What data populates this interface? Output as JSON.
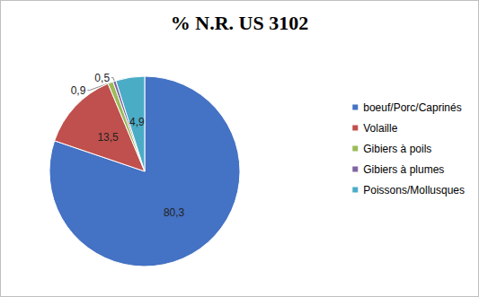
{
  "chart_data": {
    "type": "pie",
    "title": "% N.R. US 3102",
    "categories": [
      "boeuf/Porc/Caprinés",
      "Volaille",
      "Gibiers à poils",
      "Gibiers à plumes",
      "Poissons/Mollusques"
    ],
    "values": [
      80.3,
      13.5,
      0.9,
      0.5,
      4.9
    ],
    "value_labels": [
      "80,3",
      "13,5",
      "0,9",
      "0,5",
      "4,9"
    ],
    "colors": [
      "#4472c4",
      "#c0504d",
      "#9bbb59",
      "#8064a2",
      "#4bacc6"
    ],
    "data_labels": true,
    "legend": "right"
  }
}
